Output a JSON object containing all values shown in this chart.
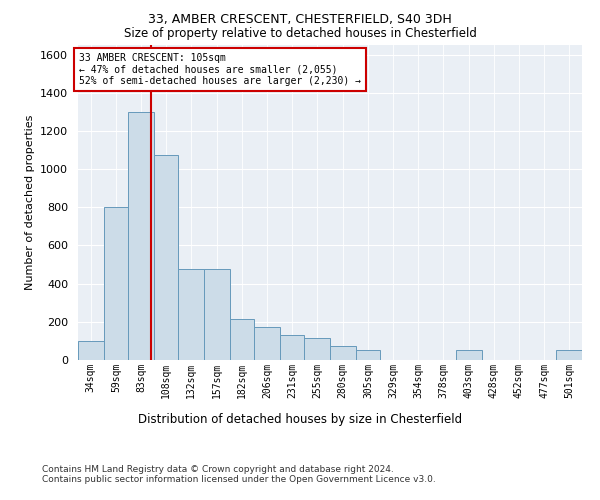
{
  "title1": "33, AMBER CRESCENT, CHESTERFIELD, S40 3DH",
  "title2": "Size of property relative to detached houses in Chesterfield",
  "xlabel": "Distribution of detached houses by size in Chesterfield",
  "ylabel": "Number of detached properties",
  "footnote1": "Contains HM Land Registry data © Crown copyright and database right 2024.",
  "footnote2": "Contains public sector information licensed under the Open Government Licence v3.0.",
  "bar_color": "#ccdce8",
  "bar_edge_color": "#6699bb",
  "vline_color": "#cc0000",
  "vline_x": 105,
  "annotation_text": "33 AMBER CRESCENT: 105sqm\n← 47% of detached houses are smaller (2,055)\n52% of semi-detached houses are larger (2,230) →",
  "bin_edges": [
    34,
    59,
    83,
    108,
    132,
    157,
    182,
    206,
    231,
    255,
    280,
    305,
    329,
    354,
    378,
    403,
    428,
    452,
    477,
    501,
    526
  ],
  "bar_heights": [
    100,
    800,
    1300,
    1075,
    475,
    475,
    215,
    175,
    130,
    115,
    75,
    50,
    0,
    0,
    0,
    50,
    0,
    0,
    0,
    50
  ],
  "ylim": [
    0,
    1650
  ],
  "yticks": [
    0,
    200,
    400,
    600,
    800,
    1000,
    1200,
    1400,
    1600
  ],
  "plot_background": "#eaeff5"
}
